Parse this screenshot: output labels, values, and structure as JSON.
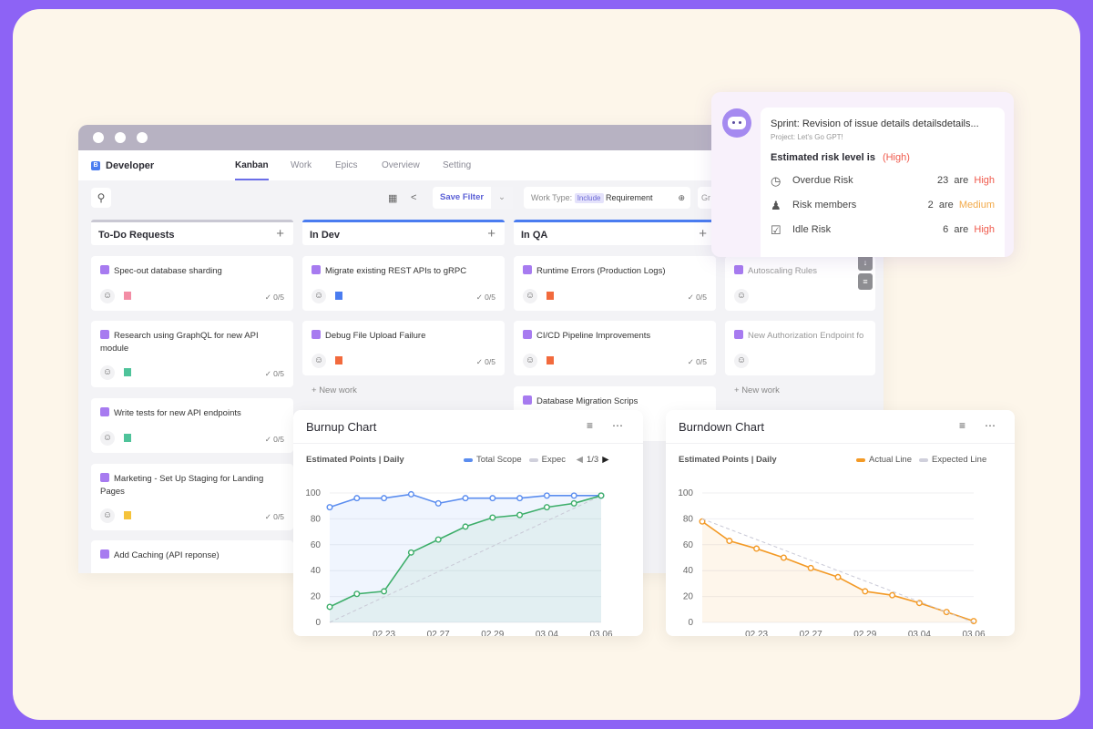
{
  "app": {
    "brand_letter": "B",
    "brand": "Developer",
    "tabs": [
      {
        "label": "Kanban",
        "active": true
      },
      {
        "label": "Work"
      },
      {
        "label": "Epics"
      },
      {
        "label": "Overview"
      },
      {
        "label": "Setting"
      }
    ]
  },
  "toolbar": {
    "save_filter": "Save Filter",
    "work_type_label": "Work Type:",
    "work_type_mode": "Include",
    "work_type_value": "Requirement",
    "group_partial": "Gr"
  },
  "columns": [
    {
      "title": "To-Do Requests",
      "cards": [
        {
          "title": "Spec-out database sharding",
          "flag_color": "#f38da5",
          "progress": "0/5"
        },
        {
          "title": "Research using GraphQL for new API module",
          "flag_color": "#4fc39a",
          "progress": "0/5"
        },
        {
          "title": "Write tests for new API endpoints",
          "flag_color": "#4fc39a",
          "progress": "0/5"
        },
        {
          "title": "Marketing - Set Up Staging for Landing Pages",
          "flag_color": "#f5c33b",
          "progress": "0/5"
        },
        {
          "title": "Add Caching (API reponse)"
        }
      ]
    },
    {
      "title": "In Dev",
      "cards": [
        {
          "title": "Migrate existing REST APIs to gRPC",
          "flag_color": "#4a7cf0",
          "progress": "0/5"
        },
        {
          "title": "Debug File Upload Failure",
          "flag_color": "#f26a3d",
          "progress": "0/5"
        }
      ],
      "new_work": "New work"
    },
    {
      "title": "In QA",
      "cards": [
        {
          "title": "Runtime Errors (Production Logs)",
          "flag_color": "#f26a3d",
          "progress": "0/5"
        },
        {
          "title": "CI/CD Pipeline Improvements",
          "flag_color": "#f26a3d",
          "progress": "0/5"
        },
        {
          "title": "Database Migration Scrips"
        }
      ]
    },
    {
      "title": "",
      "cards": [
        {
          "title": "Autoscaling Rules"
        },
        {
          "title": "New Authorization Endpoint fo"
        }
      ],
      "new_work": "New work"
    }
  ],
  "risk": {
    "sprint": "Sprint: Revision of issue details detailsdetails...",
    "project": "Project:  Let's Go GPT!",
    "estimate_label": "Estimated risk level is",
    "estimate_level": "(High)",
    "rows": [
      {
        "icon": "clock-icon",
        "label": "Overdue Risk",
        "count": "23  are",
        "level": "High"
      },
      {
        "icon": "users-icon",
        "label": "Risk members",
        "count": "2  are",
        "level": "Medium"
      },
      {
        "icon": "checkbox-icon",
        "label": "Idle Risk",
        "count": "6  are",
        "level": "High"
      }
    ]
  },
  "colors": {
    "accent": "#5a5fd6",
    "high": "#ef5a4c",
    "medium": "#f2a948"
  },
  "chart_data": [
    {
      "type": "line",
      "title": "Burnup Chart",
      "subtitle": "Estimated Points | Daily",
      "pager": "1/3",
      "x_tick_labels": [
        "02.23",
        "02.27",
        "02.29",
        "03.04",
        "03.06"
      ],
      "ylim": [
        0,
        100
      ],
      "y_ticks": [
        0,
        20,
        40,
        60,
        80,
        100
      ],
      "grid": true,
      "legend": "top-right",
      "series": [
        {
          "name": "Total Scope",
          "color": "#5b8def",
          "values": [
            89,
            96,
            96,
            99,
            92,
            96,
            96,
            96,
            98,
            98,
            98
          ]
        },
        {
          "name": "Expec",
          "color": "#c9c9d6",
          "dashed": true,
          "values": [
            0,
            9.8,
            19.6,
            29.4,
            39.2,
            49,
            58.8,
            68.6,
            78.4,
            88.2,
            98
          ]
        },
        {
          "color": "#3dae6a",
          "values": [
            12,
            22,
            24,
            54,
            64,
            74,
            81,
            83,
            89,
            92,
            98
          ]
        }
      ]
    },
    {
      "type": "line",
      "title": "Burndown Chart",
      "subtitle": "Estimated Points | Daily",
      "x_tick_labels": [
        "02.23",
        "02.27",
        "02.29",
        "03.04",
        "03.06"
      ],
      "ylim": [
        0,
        100
      ],
      "y_ticks": [
        0,
        20,
        40,
        60,
        80,
        100
      ],
      "grid": true,
      "legend": "top-right",
      "series": [
        {
          "name": "Actual Line",
          "color": "#f39a26",
          "values": [
            78,
            63,
            57,
            50,
            42,
            35,
            24,
            21,
            15,
            8,
            1
          ]
        },
        {
          "name": "Expected Line",
          "color": "#c9c9d6",
          "dashed": true,
          "values": [
            80,
            72,
            64,
            56,
            48,
            40,
            32,
            24,
            16,
            8,
            0
          ]
        }
      ]
    }
  ]
}
